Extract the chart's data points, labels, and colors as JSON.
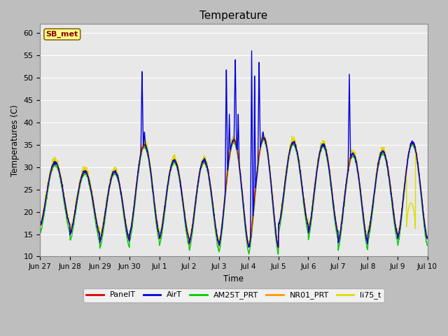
{
  "title": "Temperature",
  "ylabel": "Temperatures (C)",
  "xlabel": "Time",
  "ylim": [
    10,
    62
  ],
  "xlim": [
    0,
    13
  ],
  "yticks": [
    10,
    15,
    20,
    25,
    30,
    35,
    40,
    45,
    50,
    55,
    60
  ],
  "xtick_labels": [
    "Jun 27",
    "Jun 28",
    "Jun 29",
    "Jun 30",
    "Jul 1",
    "Jul 2",
    "Jul 3",
    "Jul 4",
    "Jul 5",
    "Jul 6",
    "Jul 7",
    "Jul 8",
    "Jul 9",
    "Jul 10"
  ],
  "annotation": "SB_met",
  "annotation_color": "#8B0000",
  "annotation_bg": "#FFFF88",
  "annotation_edge": "#8B6914",
  "fig_bg": "#BEBEBE",
  "plot_bg": "#E8E8E8",
  "grid_color": "#FFFFFF",
  "series_colors": {
    "PanelT": "#DD0000",
    "AirT": "#0000DD",
    "AM25T_PRT": "#00CC00",
    "NR01_PRT": "#FF9900",
    "li75_t": "#DDDD00"
  },
  "legend_order": [
    "PanelT",
    "AirT",
    "AM25T_PRT",
    "NR01_PRT",
    "li75_t"
  ],
  "lw": 1.0,
  "figsize": [
    6.4,
    4.8
  ],
  "dpi": 100
}
